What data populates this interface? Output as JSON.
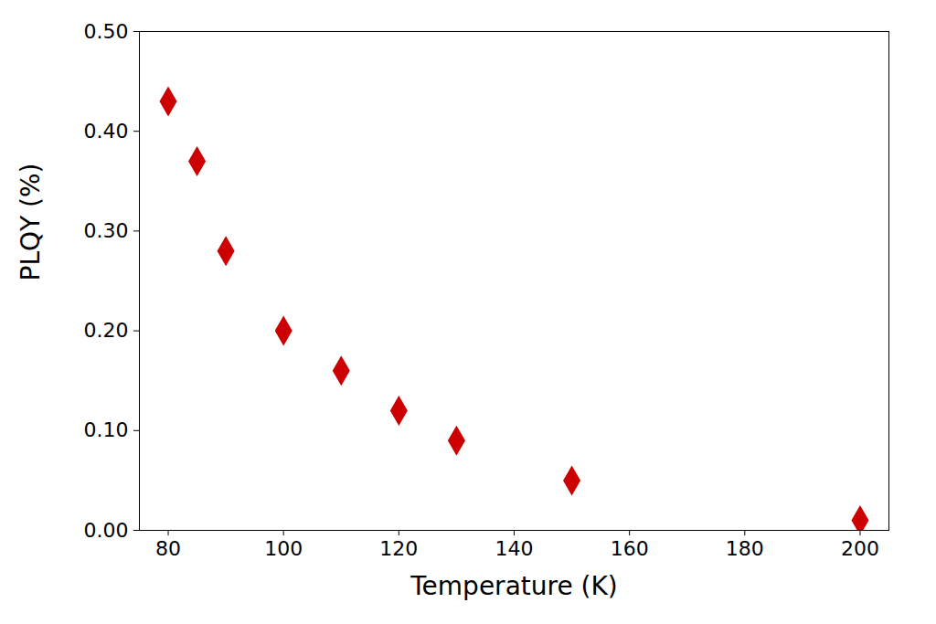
{
  "chart_data": {
    "type": "scatter",
    "x_label": "Temperature (K)",
    "y_label": "PLQY (%)",
    "x": [
      80,
      85,
      90,
      100,
      110,
      120,
      130,
      150,
      200
    ],
    "values": [
      0.43,
      0.37,
      0.28,
      0.2,
      0.16,
      0.12,
      0.09,
      0.05,
      0.01
    ],
    "color": "#cc0000",
    "marker": "diamond",
    "xlim": [
      75,
      205
    ],
    "xticks": [
      80,
      100,
      120,
      140,
      160,
      180,
      200
    ],
    "ylim": [
      0,
      0.5
    ],
    "yticks": [
      {
        "value": 0,
        "label": "0.00"
      },
      {
        "value": 0.1,
        "label": "0.10"
      },
      {
        "value": 0.2,
        "label": "0.20"
      },
      {
        "value": 0.3,
        "label": "0.30"
      },
      {
        "value": 0.4,
        "label": "0.40"
      },
      {
        "value": 0.5,
        "label": "0.50"
      }
    ],
    "grid": false
  }
}
